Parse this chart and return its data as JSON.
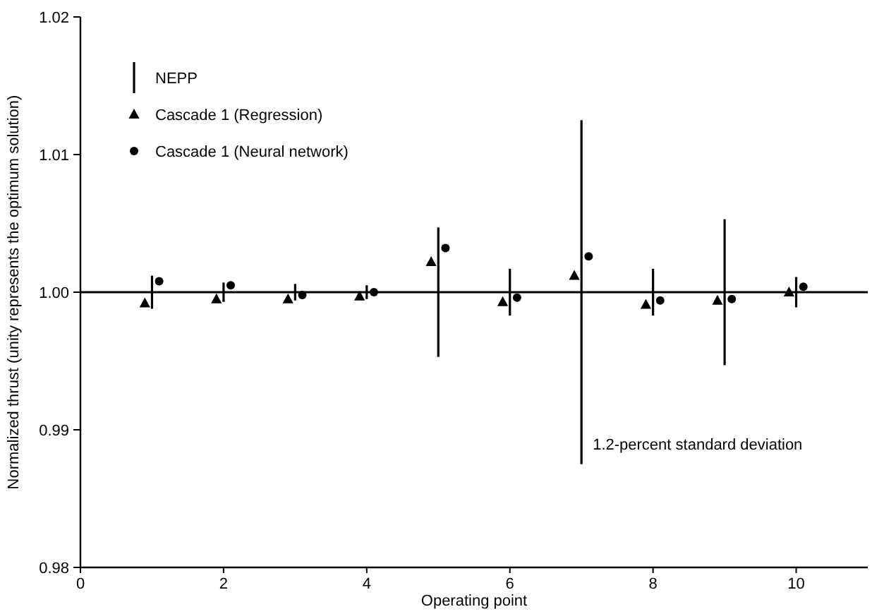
{
  "chart_data": {
    "type": "scatter",
    "xlabel": "Operating point",
    "ylabel": "Normalized thrust (unity represents the optimum solution)",
    "xlim": [
      0,
      11
    ],
    "xticks": [
      0,
      2,
      4,
      6,
      8,
      10
    ],
    "ylim": [
      0.98,
      1.02
    ],
    "yticks": [
      0.98,
      0.99,
      {
        "value": 1,
        "label": "1.00"
      },
      1.01,
      1.02
    ],
    "series": [
      {
        "name": "NEPP",
        "type": "bar",
        "color": "#000000",
        "x": [
          1,
          2,
          3,
          4,
          5,
          6,
          7,
          8,
          9,
          10
        ],
        "base": [
          0.9988,
          0.9993,
          0.9994,
          0.9995,
          0.9953,
          0.9983,
          0.9875,
          0.9983,
          0.9947,
          0.9989
        ],
        "values": [
          0.0024,
          0.0014,
          0.0012,
          0.001,
          0.0094,
          0.0034,
          0.025,
          0.0034,
          0.0106,
          0.0022
        ]
      },
      {
        "name": "Cascade 1 (Regression)",
        "color": "#000000",
        "marker": "triangle",
        "x": [
          0.9,
          1.9,
          2.9,
          3.9,
          4.9,
          5.9,
          6.9,
          7.9,
          8.9,
          9.9
        ],
        "values": [
          0.9992,
          0.9995,
          0.9995,
          0.9997,
          1.0022,
          0.9993,
          1.0012,
          0.9991,
          0.9994,
          1.0
        ]
      },
      {
        "name": "Cascade 1 (Neural network)",
        "color": "#000000",
        "marker": "circle",
        "x": [
          1.1,
          2.1,
          3.1,
          4.1,
          5.1,
          6.1,
          7.1,
          8.1,
          9.1,
          10.1
        ],
        "values": [
          1.0008,
          1.0005,
          0.9998,
          1.0,
          1.0032,
          0.9996,
          1.0026,
          0.9994,
          0.9995,
          1.0004
        ]
      }
    ],
    "ref_lines": [
      {
        "axis": "y",
        "value": 1.0,
        "color": "#000000"
      }
    ],
    "annotations": [
      {
        "text": "1.2-percent standard deviation",
        "x": 7,
        "y": 0.989
      }
    ],
    "legend": "top left",
    "grid": false
  }
}
